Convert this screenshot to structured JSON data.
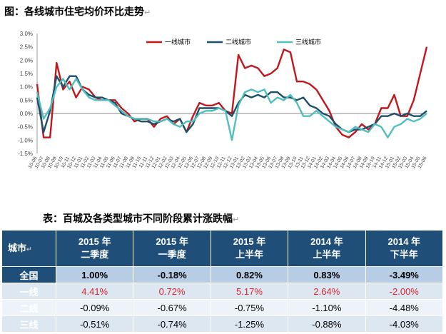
{
  "figure_title": "图：各线城市住宅均价环比走势",
  "table_title": "表：百城及各类型城市不同阶段累计涨跌幅",
  "chart_data": {
    "type": "line",
    "title": "",
    "ylim": [
      -1.5,
      3.0
    ],
    "yticks": [
      "3.0%",
      "2.5%",
      "2.0%",
      "1.5%",
      "1.0%",
      "0.5%",
      "0.0%",
      "-0.5%",
      "-1.0%",
      "-1.5%"
    ],
    "x": [
      "10-06",
      "10-07",
      "10-08",
      "10-09",
      "10-10",
      "10-11",
      "10-12",
      "11-01",
      "11-02",
      "11-03",
      "11-04",
      "11-05",
      "11-06",
      "11-07",
      "11-08",
      "11-09",
      "11-10",
      "11-11",
      "11-12",
      "12-01",
      "12-02",
      "12-03",
      "12-04",
      "12-05",
      "12-06",
      "12-07",
      "12-08",
      "12-09",
      "12-10",
      "12-11",
      "12-12",
      "13-01",
      "13-02",
      "13-03",
      "13-04",
      "13-05",
      "13-06",
      "13-07",
      "13-08",
      "13-09",
      "13-10",
      "13-11",
      "13-12",
      "14-01",
      "14-02",
      "14-03",
      "14-04",
      "14-05",
      "14-06",
      "14-07",
      "14-08",
      "14-09",
      "14-10",
      "14-11",
      "14-12",
      "15-01",
      "15-02",
      "15-03",
      "15-04",
      "15-05",
      "15-06"
    ],
    "legend_position": "top-right",
    "series": [
      {
        "name": "一线城市",
        "color": "#c0171d",
        "values": [
          1.1,
          -0.9,
          -0.9,
          1.9,
          0.9,
          1.2,
          0.6,
          1.0,
          0.9,
          0.6,
          0.5,
          0.5,
          0.5,
          0.2,
          0.0,
          -0.3,
          -0.2,
          -0.2,
          -0.5,
          -0.2,
          -0.1,
          -0.4,
          -0.2,
          -0.7,
          -0.1,
          0.4,
          0.3,
          0.3,
          0.4,
          0.1,
          0.0,
          2.2,
          1.7,
          1.8,
          1.7,
          1.4,
          1.5,
          1.7,
          2.4,
          2.3,
          1.2,
          1.2,
          1.1,
          0.9,
          0.5,
          0.1,
          -0.5,
          -0.8,
          -0.9,
          -0.7,
          -0.4,
          -0.6,
          -0.4,
          0.2,
          0.2,
          0.7,
          -0.1,
          -0.1,
          0.5,
          1.5,
          2.5
        ]
      },
      {
        "name": "二线城市",
        "color": "#1d4e6b",
        "values": [
          0.6,
          -0.7,
          0.1,
          1.4,
          1.0,
          1.4,
          1.4,
          0.9,
          0.7,
          0.6,
          0.6,
          0.5,
          0.4,
          0.0,
          -0.1,
          -0.2,
          -0.3,
          -0.3,
          -0.4,
          -0.3,
          -0.2,
          -0.3,
          -0.2,
          -0.7,
          -0.4,
          0.2,
          0.2,
          0.2,
          0.2,
          0.1,
          -0.1,
          0.4,
          0.7,
          0.6,
          0.7,
          0.6,
          0.8,
          0.8,
          0.6,
          0.6,
          0.5,
          0.6,
          0.3,
          0.2,
          0.0,
          -0.1,
          -0.4,
          -0.6,
          -0.7,
          -0.6,
          -0.6,
          -0.5,
          -0.4,
          -0.1,
          -0.1,
          0.0,
          -0.1,
          0.0,
          -0.1,
          -0.1,
          0.1
        ]
      },
      {
        "name": "三线城市",
        "color": "#4fbfbd",
        "values": [
          0.8,
          -0.2,
          0.2,
          1.0,
          1.3,
          0.9,
          1.3,
          0.9,
          0.6,
          0.5,
          0.5,
          0.5,
          0.3,
          0.1,
          -0.1,
          -0.2,
          -0.2,
          -0.2,
          -0.3,
          -0.3,
          -0.2,
          -0.4,
          -0.5,
          -0.3,
          -0.3,
          0.0,
          0.1,
          0.1,
          0.2,
          0.1,
          -1.0,
          0.3,
          0.8,
          0.9,
          0.8,
          0.9,
          0.4,
          0.6,
          0.5,
          0.7,
          0.4,
          -0.1,
          -0.1,
          0.1,
          -0.1,
          -0.3,
          -0.5,
          -0.6,
          -0.7,
          -0.5,
          -0.6,
          -0.7,
          -0.4,
          -0.5,
          -0.9,
          -0.5,
          -0.4,
          -0.2,
          -0.3,
          -0.2,
          0.0
        ]
      }
    ]
  },
  "table": {
    "corner": "城市",
    "headers": [
      {
        "l1": "2015 年",
        "l2": "二季度"
      },
      {
        "l1": "2015 年",
        "l2": "一季度"
      },
      {
        "l1": "2015 年",
        "l2": "上半年"
      },
      {
        "l1": "2014 年",
        "l2": "上半年"
      },
      {
        "l1": "2014 年",
        "l2": "下半年"
      }
    ],
    "rows": [
      {
        "label": "全国",
        "cells": [
          "1.00%",
          "-0.18%",
          "0.82%",
          "0.83%",
          "-3.49%"
        ]
      },
      {
        "label": "一线",
        "cells": [
          "4.41%",
          "0.72%",
          "5.17%",
          "2.64%",
          "-2.00%"
        ],
        "color": "#d9262b"
      },
      {
        "label": "二线",
        "cells": [
          "-0.09%",
          "-0.67%",
          "-0.75%",
          "-1.10%",
          "-4.48%"
        ]
      },
      {
        "label": "三线",
        "cells": [
          "-0.51%",
          "-0.74%",
          "-1.25%",
          "-0.88%",
          "-4.03%"
        ]
      }
    ]
  }
}
